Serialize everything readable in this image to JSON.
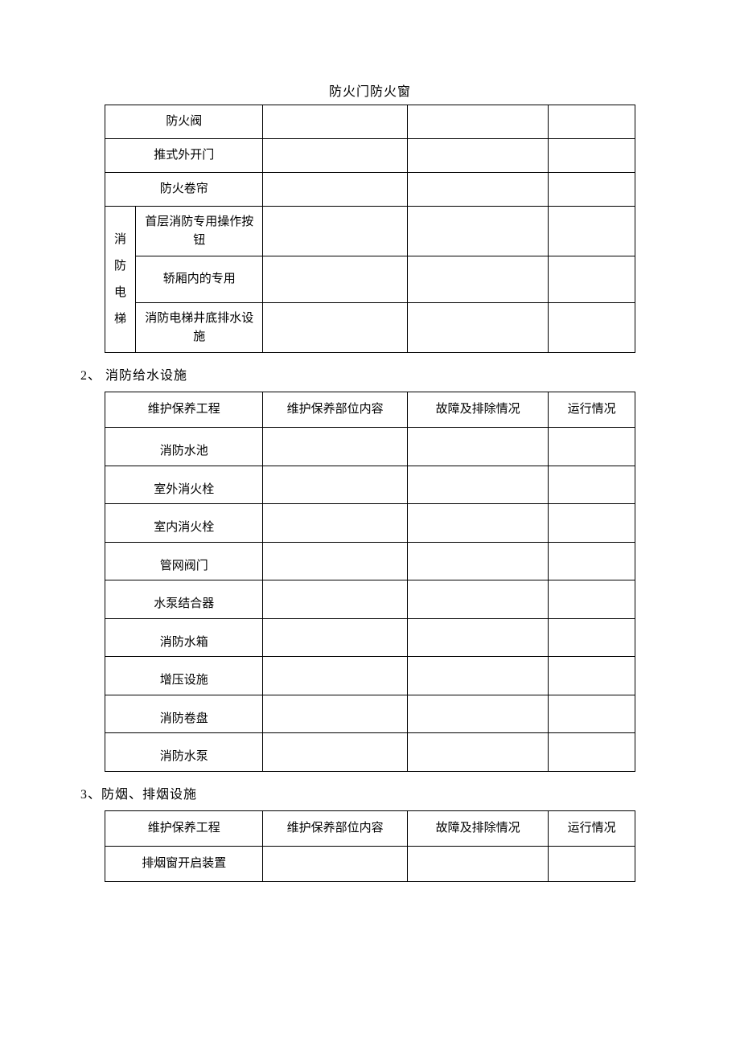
{
  "page_title": "防火门防火窗",
  "table1": {
    "rows_top": [
      "防火阀",
      "推式外开门",
      "防火卷帘"
    ],
    "merged_label": "消\n防\n电\n梯",
    "merged_rows": [
      "首层消防专用操作按钮",
      "轿厢内的专用",
      "消防电梯井底排水设施"
    ]
  },
  "section2": {
    "heading": "2、 消防给水设施",
    "header": [
      "维护保养工程",
      "维护保养部位内容",
      "故障及排除情况",
      "运行情况"
    ],
    "rows": [
      "消防水池",
      "室外消火栓",
      "室内消火栓",
      "管网阀门",
      "水泵结合器",
      "消防水箱",
      "增压设施",
      "消防卷盘",
      "消防水泵"
    ]
  },
  "section3": {
    "heading": "3、防烟、排烟设施",
    "header": [
      "维护保养工程",
      "维护保养部位内容",
      "故障及排除情况",
      "运行情况"
    ],
    "rows": [
      "排烟窗开启装置"
    ]
  },
  "colors": {
    "background": "#ffffff",
    "text": "#000000",
    "border": "#000000"
  },
  "fonts": {
    "body_family": "SimSun",
    "body_size_pt": 11,
    "title_size_pt": 12
  }
}
